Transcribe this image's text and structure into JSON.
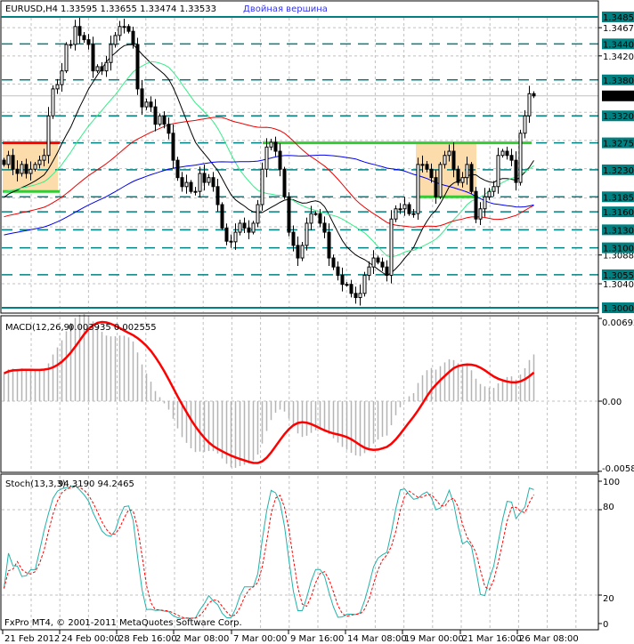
{
  "header": {
    "symbol": "EURUSD,H4",
    "ohlc": "1.33595 1.33655 1.33474 1.33533",
    "pattern": "Двойная вершина"
  },
  "copyright": "FxPro MT4, © 2001-2011 MetaQuotes Software Corp.",
  "colors": {
    "level": "#008080",
    "current_price_bg": "#000000",
    "zone": "#fcdcaa",
    "resistance_red": "#ff0000",
    "neckline_green": "#33cc33",
    "ma_black": "#000000",
    "ma_green": "#33ee88",
    "ma_red": "#ee0000",
    "ma_blue": "#0000ee",
    "macd_hist": "#b4b4b4",
    "macd_signal": "#ff0000",
    "stoch_main": "#20b2aa",
    "stoch_signal": "#ff0000",
    "pattern_text": "#3333ee"
  },
  "chart_data": [
    {
      "type": "candlestick",
      "symbol": "EURUSD",
      "timeframe": "H4",
      "close": [
        1.3239,
        1.3254,
        1.3231,
        1.3224,
        1.3239,
        1.3224,
        1.3231,
        1.3239,
        1.3246,
        1.3254,
        1.332,
        1.3365,
        1.3372,
        1.3395,
        1.3439,
        1.3439,
        1.3469,
        1.3454,
        1.3447,
        1.3439,
        1.3395,
        1.3402,
        1.3395,
        1.3409,
        1.3439,
        1.3454,
        1.3469,
        1.3469,
        1.3461,
        1.3439,
        1.3365,
        1.3335,
        1.3343,
        1.3335,
        1.3306,
        1.332,
        1.3306,
        1.3291,
        1.3246,
        1.3217,
        1.3202,
        1.3209,
        1.3194,
        1.3194,
        1.3224,
        1.3209,
        1.3217,
        1.3202,
        1.3172,
        1.3133,
        1.3111,
        1.311,
        1.3126,
        1.3141,
        1.3133,
        1.3126,
        1.3141,
        1.3172,
        1.3231,
        1.3268,
        1.3276,
        1.3261,
        1.3231,
        1.3185,
        1.3126,
        1.3104,
        1.3083,
        1.3104,
        1.3141,
        1.3157,
        1.3157,
        1.3141,
        1.3126,
        1.3083,
        1.3068,
        1.3054,
        1.3039,
        1.3039,
        1.3024,
        1.3017,
        1.3024,
        1.3054,
        1.3068,
        1.3083,
        1.3076,
        1.3068,
        1.3054,
        1.3148,
        1.3165,
        1.3165,
        1.3172,
        1.3157,
        1.3157,
        1.3239,
        1.3239,
        1.3231,
        1.3217,
        1.3185,
        1.3239,
        1.3254,
        1.3261,
        1.3231,
        1.3209,
        1.3217,
        1.3239,
        1.3194,
        1.3148,
        1.3165,
        1.3185,
        1.3194,
        1.3202,
        1.3254,
        1.3261,
        1.3254,
        1.3246,
        1.3209,
        1.3291,
        1.332,
        1.3357,
        1.33533
      ],
      "y_range": [
        1.2993,
        1.3502
      ],
      "levels": [
        "1.34850",
        "1.34400",
        "1.33800",
        "1.33200",
        "1.32750",
        "1.32300",
        "1.31850",
        "1.31600",
        "1.31300",
        "1.31000",
        "1.30550",
        "1.30000"
      ],
      "current_price": "1.33533",
      "y_ticks": [
        "1.34670",
        "1.34200",
        "1.30880",
        "1.30400"
      ],
      "x_ticks": [
        "21 Feb 2012",
        "24 Feb 00:00",
        "28 Feb 16:00",
        "2 Mar 08:00",
        "7 Mar 00:00",
        "9 Mar 16:00",
        "14 Mar 08:00",
        "19 Mar 00:00",
        "21 Mar 16:00",
        "26 Mar 08:00"
      ],
      "zones": [
        {
          "top": 1.3275,
          "bottom": 1.3194
        },
        {
          "top": 1.3275,
          "bottom": 1.3185
        }
      ],
      "grid": true
    },
    {
      "type": "bar",
      "title": "MACD(12,26,9)",
      "values_label": "0.003935 0.002555",
      "main": 0.003935,
      "signal": 0.002555,
      "y_ticks": [
        "0.006923",
        "0.00",
        "-0.00587"
      ],
      "y_range": [
        -0.00587,
        0.006923
      ]
    },
    {
      "type": "line",
      "title": "Stoch(13,3,3)",
      "values_label": "94.3190 94.2465",
      "main": 94.319,
      "signal": 94.2465,
      "y_ticks": [
        "100",
        "80",
        "20",
        "0"
      ],
      "y_range": [
        0,
        100
      ]
    }
  ]
}
